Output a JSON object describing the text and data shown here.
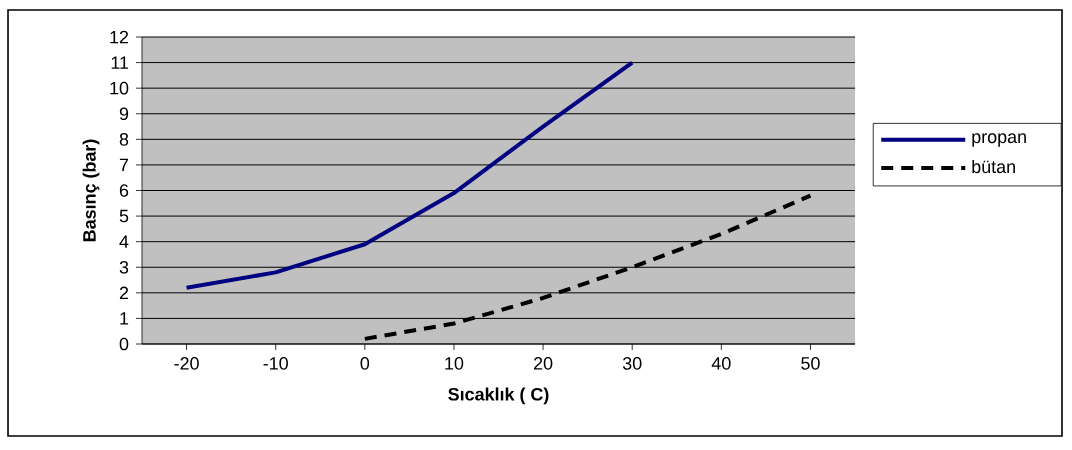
{
  "chart_data": {
    "type": "line",
    "xlabel": "Sıcaklık (  C)",
    "ylabel": "Basınç (bar)",
    "xlim": [
      -25,
      55
    ],
    "xticks": [
      -20,
      -10,
      0,
      10,
      20,
      30,
      40,
      50
    ],
    "ylim": [
      0,
      12
    ],
    "yticks": [
      0,
      1,
      2,
      3,
      4,
      5,
      6,
      7,
      8,
      9,
      10,
      11,
      12
    ],
    "grid": "y",
    "legend": "right",
    "marker": "none",
    "series": [
      {
        "name": "propan",
        "color": "#000080",
        "line_style": "solid",
        "x": [
          -20,
          -10,
          0,
          10,
          20,
          30
        ],
        "values": [
          2.2,
          2.8,
          3.9,
          5.9,
          8.5,
          11
        ]
      },
      {
        "name": "bütan",
        "color": "#000000",
        "line_style": "dashed",
        "x": [
          0,
          10,
          20,
          30,
          40,
          50
        ],
        "values": [
          0.2,
          0.8,
          1.8,
          3.0,
          4.3,
          5.8
        ]
      }
    ]
  }
}
